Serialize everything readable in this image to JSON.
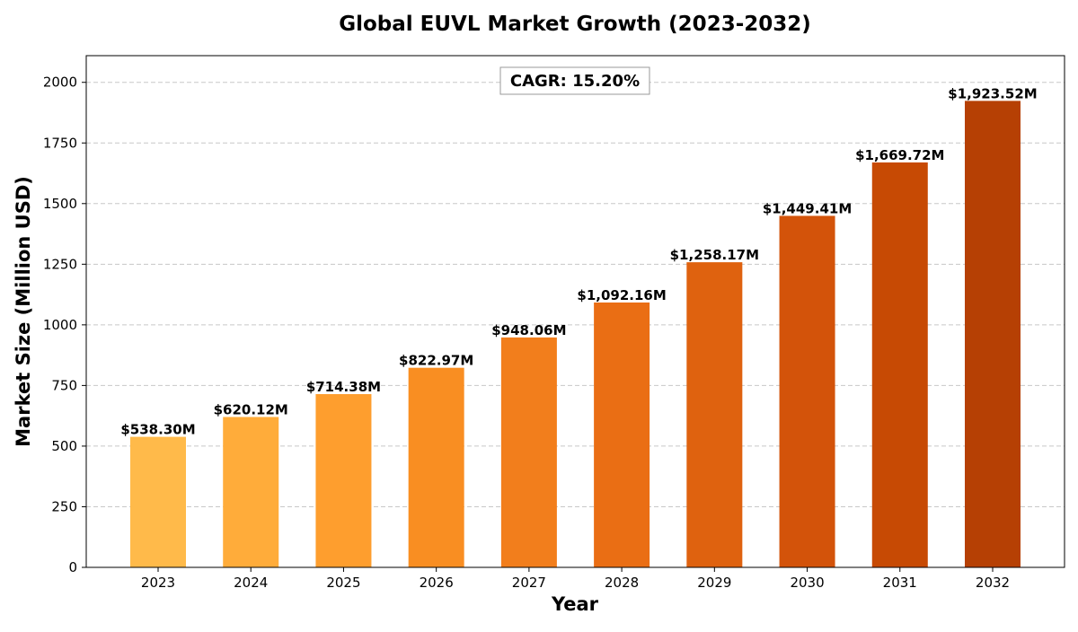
{
  "chart_data": {
    "type": "bar",
    "title": "Global EUVL Market Growth (2023-2032)",
    "xlabel": "Year",
    "ylabel": "Market Size (Million USD)",
    "categories": [
      "2023",
      "2024",
      "2025",
      "2026",
      "2027",
      "2028",
      "2029",
      "2030",
      "2031",
      "2032"
    ],
    "values": [
      538.3,
      620.12,
      714.38,
      822.97,
      948.06,
      1092.16,
      1258.17,
      1449.41,
      1669.72,
      1923.52
    ],
    "data_labels": [
      "$538.30M",
      "$620.12M",
      "$714.38M",
      "$822.97M",
      "$948.06M",
      "$1,092.16M",
      "$1,258.17M",
      "$1,449.41M",
      "$1,669.72M",
      "$1,923.52M"
    ],
    "bar_colors": [
      "#FFBA4A",
      "#FFAC3A",
      "#FE9E2E",
      "#F98E22",
      "#F27E1C",
      "#EA6E14",
      "#DF620F",
      "#D3530A",
      "#C74A04",
      "#B64004"
    ],
    "ylim": [
      0,
      2110
    ],
    "yticks": [
      0,
      250,
      500,
      750,
      1000,
      1250,
      1500,
      1750,
      2000
    ],
    "grid": true,
    "grid_axis": "y",
    "annotation": "CAGR: 15.20%",
    "annotation_position": "top-center"
  }
}
